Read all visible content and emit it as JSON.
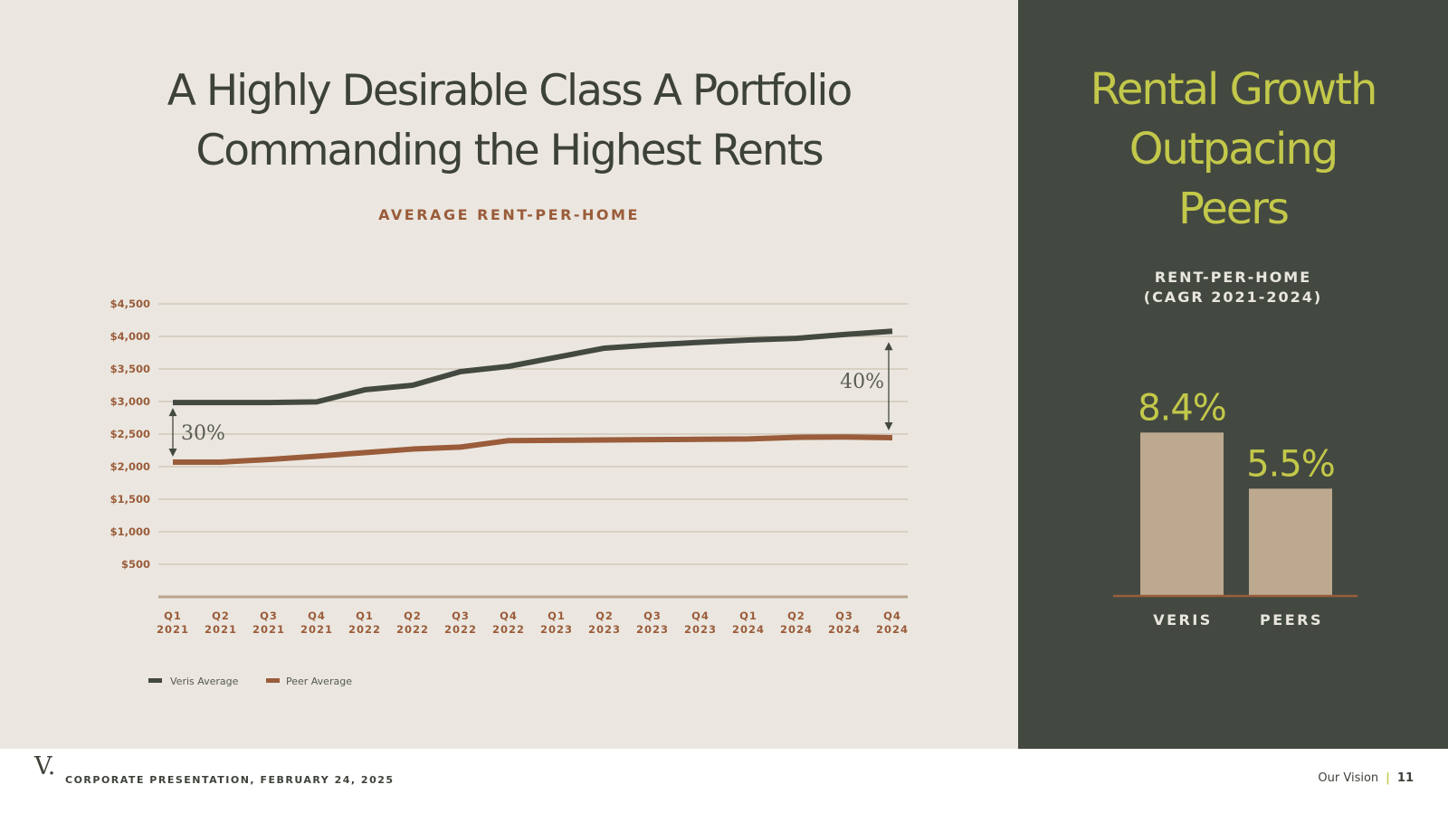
{
  "slide": {
    "title_line1": "A Highly Desirable Class A Portfolio",
    "title_line2": "Commanding the Highest Rents",
    "chart_subtitle": "AVERAGE RENT-PER-HOME",
    "side_title_line1": "Rental Growth",
    "side_title_line2": "Outpacing",
    "side_title_line3": "Peers",
    "side_subtitle_line1": "RENT-PER-HOME",
    "side_subtitle_line2": "(CAGR 2021-2024)"
  },
  "footer": {
    "logo": "V.",
    "text": "CORPORATE PRESENTATION, FEBRUARY 24, 2025",
    "section": "Our Vision",
    "separator": "|",
    "page": "11"
  },
  "colors": {
    "veris": "#434940",
    "peer": "#9a5c3a",
    "bar": "#bda990",
    "accent": "#c3c84a",
    "tick": "#9a5c3a"
  },
  "chart_data": [
    {
      "type": "line",
      "title": "AVERAGE RENT-PER-HOME",
      "categories": [
        "Q1\n2021",
        "Q2\n2021",
        "Q3\n2021",
        "Q4\n2021",
        "Q1\n2022",
        "Q2\n2022",
        "Q3\n2022",
        "Q4\n2022",
        "Q1\n2023",
        "Q2\n2023",
        "Q3\n2023",
        "Q4\n2023",
        "Q1\n2024",
        "Q2\n2024",
        "Q3\n2024",
        "Q4\n2024"
      ],
      "series": [
        {
          "name": "Veris Average",
          "values": [
            2985,
            2985,
            2985,
            2995,
            3180,
            3250,
            3460,
            3540,
            3680,
            3820,
            3870,
            3910,
            3945,
            3970,
            4030,
            4080
          ]
        },
        {
          "name": "Peer Average",
          "values": [
            2070,
            2070,
            2110,
            2160,
            2215,
            2270,
            2300,
            2400,
            2405,
            2410,
            2415,
            2420,
            2425,
            2450,
            2455,
            2445
          ]
        }
      ],
      "yticks": [
        {
          "value": 500,
          "label": "$500"
        },
        {
          "value": 1000,
          "label": "$1,000"
        },
        {
          "value": 1500,
          "label": "$1,500"
        },
        {
          "value": 2000,
          "label": "$2,000"
        },
        {
          "value": 2500,
          "label": "$2,500"
        },
        {
          "value": 3000,
          "label": "$3,000"
        },
        {
          "value": 3500,
          "label": "$3,500"
        },
        {
          "value": 4000,
          "label": "$4,000"
        },
        {
          "value": 4500,
          "label": "$4,500"
        }
      ],
      "ylim": [
        0,
        4500
      ],
      "grid": true,
      "legend": "bottom-left",
      "annotations": [
        {
          "label": "30%",
          "category_index": 0
        },
        {
          "label": "40%",
          "category_index": 15
        }
      ]
    },
    {
      "type": "bar",
      "title": "RENT-PER-HOME (CAGR 2021-2024)",
      "categories": [
        "VERIS",
        "PEERS"
      ],
      "values": [
        8.4,
        5.5
      ],
      "labels": [
        "8.4%",
        "5.5%"
      ],
      "ylim": [
        0,
        11.5
      ]
    }
  ]
}
